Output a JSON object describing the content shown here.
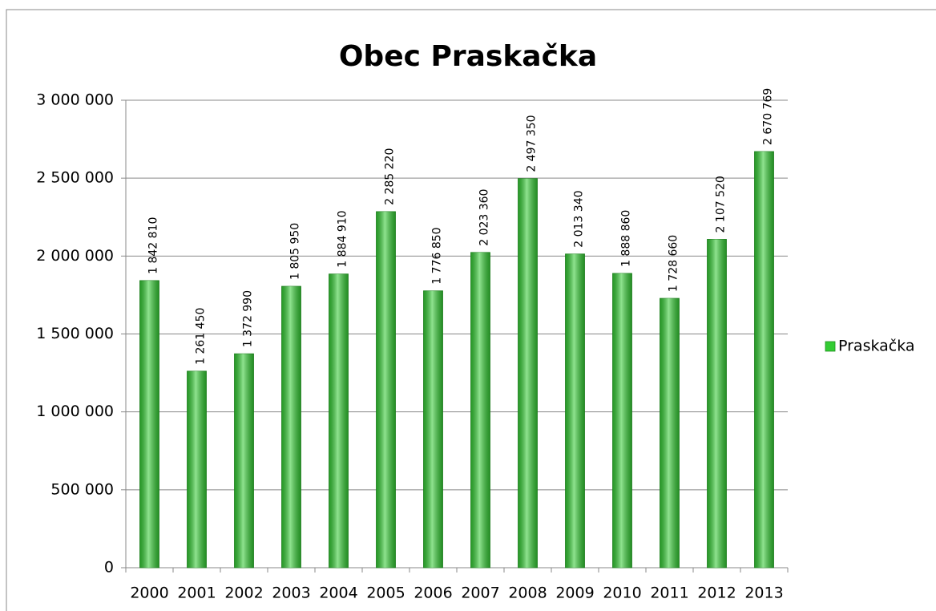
{
  "chart_data": {
    "type": "bar",
    "title": "Obec Praskačka",
    "categories": [
      "2000",
      "2001",
      "2002",
      "2003",
      "2004",
      "2005",
      "2006",
      "2007",
      "2008",
      "2009",
      "2010",
      "2011",
      "2012",
      "2013"
    ],
    "series": [
      {
        "name": "Praskačka",
        "color": "#33cc33",
        "values": [
          1842810,
          1261450,
          1372990,
          1805950,
          1884910,
          2285220,
          1776850,
          2023360,
          2497350,
          2013340,
          1888860,
          1728660,
          2107520,
          2670769
        ],
        "value_labels": [
          "1 842 810",
          "1 261 450",
          "1 372 990",
          "1 805 950",
          "1 884 910",
          "2 285 220",
          "1 776 850",
          "2 023 360",
          "2 497 350",
          "2 013 340",
          "1 888 860",
          "1 728 660",
          "2 107 520",
          "2 670 769"
        ]
      }
    ],
    "ylim": [
      0,
      3000000
    ],
    "yticks": [
      {
        "value": 0,
        "label": "0"
      },
      {
        "value": 500000,
        "label": "500 000"
      },
      {
        "value": 1000000,
        "label": "1 000 000"
      },
      {
        "value": 1500000,
        "label": "1 500 000"
      },
      {
        "value": 2000000,
        "label": "2 000 000"
      },
      {
        "value": 2500000,
        "label": "2 500 000"
      },
      {
        "value": 3000000,
        "label": "3 000 000"
      }
    ],
    "grid": true,
    "legend": "right"
  }
}
